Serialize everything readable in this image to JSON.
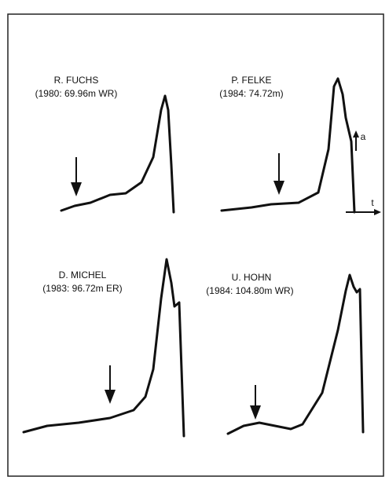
{
  "panels": [
    {
      "name": "R. FUCHS",
      "detail": "(1980: 69.96m WR)"
    },
    {
      "name": "P. FELKE",
      "detail": "(1984: 74.72m)"
    },
    {
      "name": "D. MICHEL",
      "detail": "(1983: 96.72m ER)"
    },
    {
      "name": "U. HOHN",
      "detail": "(1984: 104.80m WR)"
    }
  ],
  "axes": {
    "y_label": "a",
    "x_label": "t"
  }
}
